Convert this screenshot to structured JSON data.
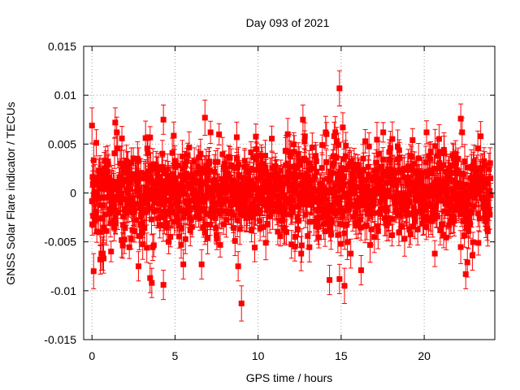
{
  "chart_data": {
    "type": "scatter",
    "title": "Day 093 of 2021",
    "xlabel": "GPS time / hours",
    "ylabel": "GNSS Solar Flare indicator / TECUs",
    "xlim": [
      -0.5,
      24.25
    ],
    "ylim": [
      -0.015,
      0.015
    ],
    "grid": true,
    "error_bars": true,
    "series_color": "#ff0000",
    "x_ticks": [
      {
        "value": 0,
        "label": "0"
      },
      {
        "value": 5,
        "label": "5"
      },
      {
        "value": 10,
        "label": "10"
      },
      {
        "value": 15,
        "label": "15"
      },
      {
        "value": 20,
        "label": "20"
      }
    ],
    "y_ticks": [
      {
        "value": 0.015,
        "label": "0.015"
      },
      {
        "value": 0.01,
        "label": "0.01"
      },
      {
        "value": 0.005,
        "label": "0.005"
      },
      {
        "value": 0,
        "label": "0"
      },
      {
        "value": -0.005,
        "label": "-0.005"
      },
      {
        "value": -0.01,
        "label": "-0.01"
      },
      {
        "value": -0.015,
        "label": "-0.015"
      }
    ],
    "outliers": [
      {
        "x": 0.0,
        "y": 0.0069,
        "err": 0.0018
      },
      {
        "x": 0.1,
        "y": -0.008,
        "err": 0.0018
      },
      {
        "x": 0.5,
        "y": -0.0068,
        "err": 0.0015
      },
      {
        "x": 0.7,
        "y": -0.0067,
        "err": 0.0015
      },
      {
        "x": 1.4,
        "y": 0.0072,
        "err": 0.0015
      },
      {
        "x": 2.8,
        "y": -0.0075,
        "err": 0.0015
      },
      {
        "x": 3.3,
        "y": -0.0056,
        "err": 0.0015
      },
      {
        "x": 3.5,
        "y": -0.0087,
        "err": 0.0015
      },
      {
        "x": 3.6,
        "y": -0.0092,
        "err": 0.0015
      },
      {
        "x": 4.3,
        "y": 0.0075,
        "err": 0.0015
      },
      {
        "x": 4.3,
        "y": -0.0094,
        "err": 0.0015
      },
      {
        "x": 5.5,
        "y": -0.0073,
        "err": 0.0015
      },
      {
        "x": 6.8,
        "y": 0.0077,
        "err": 0.0018
      },
      {
        "x": 6.6,
        "y": -0.0073,
        "err": 0.0015
      },
      {
        "x": 8.8,
        "y": -0.0075,
        "err": 0.0015
      },
      {
        "x": 9.0,
        "y": -0.0113,
        "err": 0.0018
      },
      {
        "x": 12.7,
        "y": 0.0075,
        "err": 0.0015
      },
      {
        "x": 14.3,
        "y": -0.0089,
        "err": 0.0015
      },
      {
        "x": 14.9,
        "y": 0.0107,
        "err": 0.0018
      },
      {
        "x": 14.9,
        "y": -0.0088,
        "err": 0.0015
      },
      {
        "x": 15.1,
        "y": 0.0067,
        "err": 0.0015
      },
      {
        "x": 15.2,
        "y": -0.0095,
        "err": 0.0018
      },
      {
        "x": 16.2,
        "y": -0.0079,
        "err": 0.0015
      },
      {
        "x": 22.2,
        "y": 0.0076,
        "err": 0.0015
      },
      {
        "x": 22.5,
        "y": -0.0083,
        "err": 0.0015
      },
      {
        "x": 22.6,
        "y": -0.0071,
        "err": 0.0015
      },
      {
        "x": 22.9,
        "y": -0.0064,
        "err": 0.0015
      },
      {
        "x": 23.4,
        "y": 0.0058,
        "err": 0.0015
      }
    ],
    "noise_cloud": {
      "x_start": 0.0,
      "x_end": 24.0,
      "points": 1400,
      "sigma": 0.0023,
      "error_half_width": 0.0014,
      "seed": 93
    }
  }
}
